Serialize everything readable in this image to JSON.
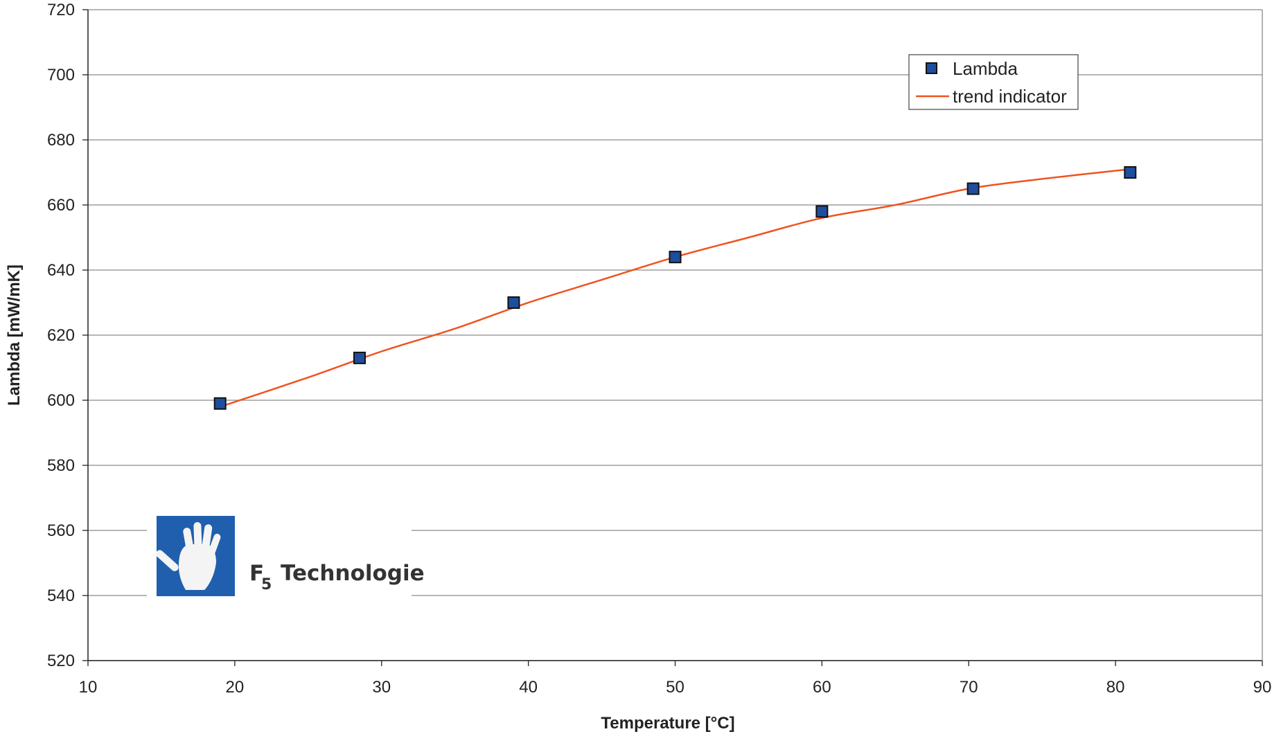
{
  "chart_data": {
    "type": "scatter",
    "xlabel": "Temperature [°C]",
    "ylabel": "Lambda [mW/mK]",
    "xlim": [
      10,
      90
    ],
    "ylim": [
      520,
      720
    ],
    "x_ticks": [
      "10",
      "20",
      "30",
      "40",
      "50",
      "60",
      "70",
      "80",
      "90"
    ],
    "y_ticks": [
      "520",
      "540",
      "560",
      "580",
      "600",
      "620",
      "640",
      "660",
      "680",
      "700",
      "720"
    ],
    "grid": "horizontal",
    "legend_position": "top-right",
    "series": [
      {
        "name": "Lambda",
        "marker": "square",
        "color": "#1f4e9e",
        "points": [
          {
            "x": 19,
            "y": 599
          },
          {
            "x": 28.5,
            "y": 613
          },
          {
            "x": 39,
            "y": 630
          },
          {
            "x": 50,
            "y": 644
          },
          {
            "x": 60,
            "y": 658
          },
          {
            "x": 70.3,
            "y": 665
          },
          {
            "x": 81,
            "y": 670
          }
        ]
      },
      {
        "name": "trend indicator",
        "type": "line",
        "color": "#f0531f",
        "points": [
          {
            "x": 19,
            "y": 598
          },
          {
            "x": 25,
            "y": 607
          },
          {
            "x": 30,
            "y": 615
          },
          {
            "x": 35,
            "y": 622
          },
          {
            "x": 40,
            "y": 630
          },
          {
            "x": 45,
            "y": 637
          },
          {
            "x": 50,
            "y": 644
          },
          {
            "x": 55,
            "y": 650
          },
          {
            "x": 60,
            "y": 656
          },
          {
            "x": 65,
            "y": 660
          },
          {
            "x": 70,
            "y": 665
          },
          {
            "x": 75,
            "y": 668
          },
          {
            "x": 81,
            "y": 671
          }
        ]
      }
    ]
  },
  "logo": {
    "text": "Technologie",
    "letter": "F",
    "subscript": "5",
    "icon": "hand-icon",
    "color": "#1f5fae"
  }
}
